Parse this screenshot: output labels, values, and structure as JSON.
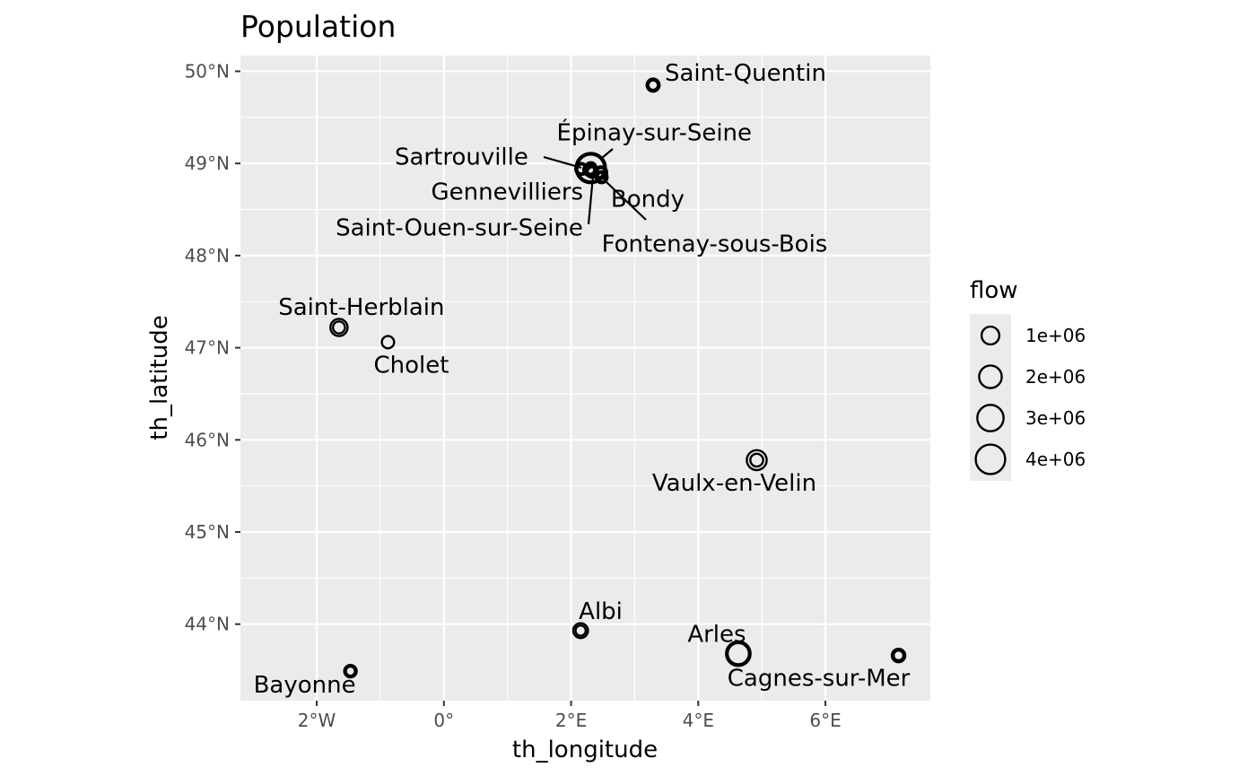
{
  "chart_data": {
    "type": "scatter",
    "title": "Population",
    "xlabel": "th_longitude",
    "ylabel": "th_latitude",
    "xlim": [
      -3.2,
      7.65
    ],
    "ylim": [
      43.17,
      50.17
    ],
    "x_ticks": [
      {
        "value": -2,
        "label": "2°W"
      },
      {
        "value": 0,
        "label": "0°"
      },
      {
        "value": 2,
        "label": "2°E"
      },
      {
        "value": 4,
        "label": "4°E"
      },
      {
        "value": 6,
        "label": "6°E"
      }
    ],
    "y_ticks": [
      {
        "value": 44,
        "label": "44°N"
      },
      {
        "value": 45,
        "label": "45°N"
      },
      {
        "value": 46,
        "label": "46°N"
      },
      {
        "value": 47,
        "label": "47°N"
      },
      {
        "value": 48,
        "label": "48°N"
      },
      {
        "value": 49,
        "label": "49°N"
      },
      {
        "value": 50,
        "label": "50°N"
      }
    ],
    "grid": true,
    "legend_placement": "right",
    "colors": {
      "panel": "#ebebeb",
      "grid": "#ffffff",
      "point": "#000000",
      "tick_text": "#4d4d4d"
    },
    "legend": {
      "title": "flow",
      "entries": [
        {
          "value": 1000000,
          "label": "1e+06"
        },
        {
          "value": 2000000,
          "label": "2e+06"
        },
        {
          "value": 3000000,
          "label": "3e+06"
        },
        {
          "value": 4000000,
          "label": "4e+06"
        }
      ]
    },
    "points": [
      {
        "name": "Saint-Quentin",
        "lon": 3.29,
        "lat": 49.85,
        "flows": [
          350000,
          80000
        ]
      },
      {
        "name": "Épinay-sur-Seine",
        "lon": 2.31,
        "lat": 48.95,
        "flows": [
          4300000,
          3200000,
          220000
        ]
      },
      {
        "name": "Sartrouville",
        "lon": 2.16,
        "lat": 48.94,
        "flows": [
          250000,
          60000
        ]
      },
      {
        "name": "Gennevilliers",
        "lon": 2.29,
        "lat": 48.93,
        "flows": [
          300000,
          70000
        ]
      },
      {
        "name": "Bondy",
        "lon": 2.47,
        "lat": 48.9,
        "flows": [
          300000,
          70000
        ]
      },
      {
        "name": "Saint-Ouen-sur-Seine",
        "lon": 2.33,
        "lat": 48.91,
        "flows": [
          250000,
          60000
        ]
      },
      {
        "name": "Fontenay-sous-Bois",
        "lon": 2.48,
        "lat": 48.85,
        "flows": [
          250000,
          60000
        ]
      },
      {
        "name": "Saint-Herblain",
        "lon": -1.65,
        "lat": 47.22,
        "flows": [
          900000,
          250000
        ]
      },
      {
        "name": "Cholet",
        "lon": -0.88,
        "lat": 47.06,
        "flows": [
          280000
        ]
      },
      {
        "name": "Vaulx-en-Velin",
        "lon": 4.92,
        "lat": 45.78,
        "flows": [
          1400000,
          330000
        ]
      },
      {
        "name": "Albi",
        "lon": 2.15,
        "lat": 43.93,
        "flows": [
          550000,
          130000
        ]
      },
      {
        "name": "Bayonne",
        "lon": -1.47,
        "lat": 43.49,
        "flows": [
          300000,
          70000
        ]
      },
      {
        "name": "Arles",
        "lon": 4.63,
        "lat": 43.68,
        "flows": [
          2500000,
          1700000
        ]
      },
      {
        "name": "Cagnes-sur-Mer",
        "lon": 7.15,
        "lat": 43.66,
        "flows": [
          400000,
          100000
        ]
      }
    ]
  }
}
